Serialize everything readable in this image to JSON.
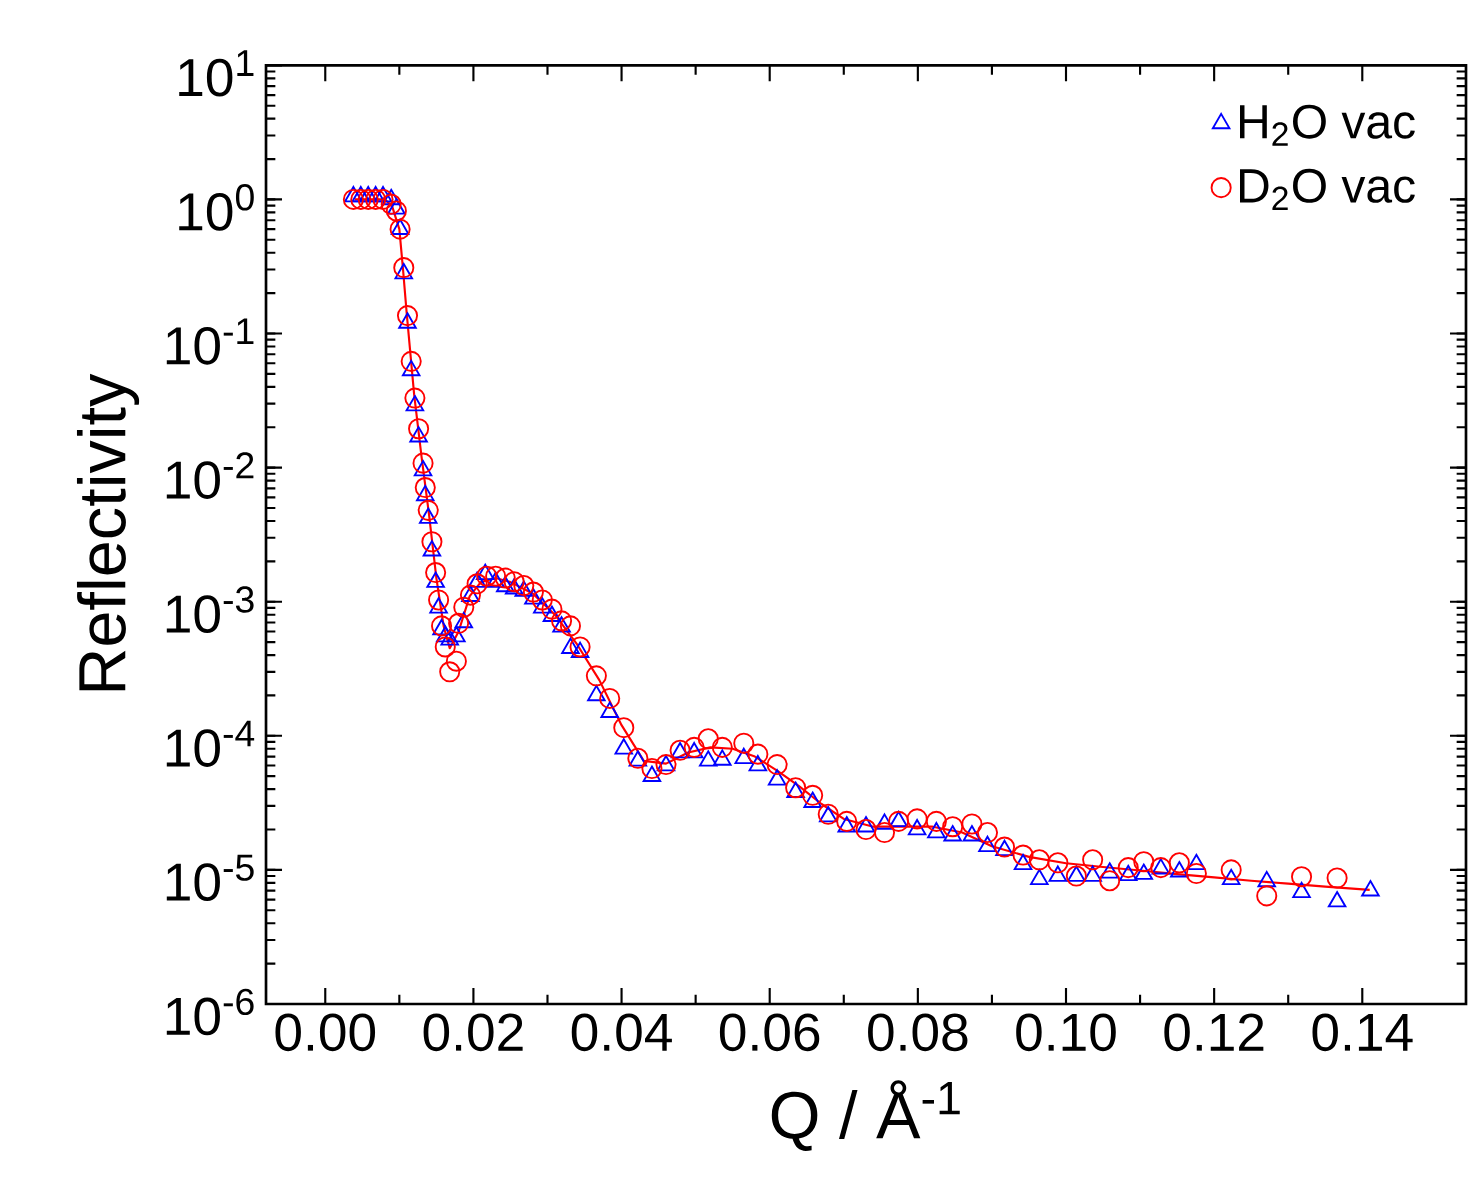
{
  "chart_data": {
    "type": "scatter",
    "xlabel": "Q / Å$^{-1}$",
    "ylabel": "Reflectivity",
    "log": "y",
    "legend": "top right",
    "grid": false,
    "xlim": [
      -0.008,
      0.154
    ],
    "ylim": [
      1e-06,
      10
    ],
    "xticks": [
      {
        "value": 0,
        "label": "0.00"
      },
      {
        "value": 0.02,
        "label": "0.02"
      },
      {
        "value": 0.04,
        "label": "0.04"
      },
      {
        "value": 0.06,
        "label": "0.06"
      },
      {
        "value": 0.08,
        "label": "0.08"
      },
      {
        "value": 0.1,
        "label": "0.10"
      },
      {
        "value": 0.12,
        "label": "0.12"
      },
      {
        "value": 0.14,
        "label": "0.14"
      }
    ],
    "yticks": [
      {
        "value": 1e-06,
        "label": "10$^{-6}$"
      },
      {
        "value": 1e-05,
        "label": "10$^{-5}$"
      },
      {
        "value": 0.0001,
        "label": "10$^{-4}$"
      },
      {
        "value": 0.001,
        "label": "10$^{-3}$"
      },
      {
        "value": 0.01,
        "label": "10$^{-2}$"
      },
      {
        "value": 0.1,
        "label": "10$^{-1}$"
      },
      {
        "value": 1,
        "label": "10$^{0}$"
      },
      {
        "value": 10,
        "label": "10$^{1}$"
      }
    ],
    "series": [
      {
        "type": "line",
        "color": "#ff0000",
        "marker": "none",
        "line_style": "solid",
        "x": [
          0.004,
          0.008,
          0.009,
          0.01,
          0.0105,
          0.011,
          0.012,
          0.013,
          0.014,
          0.015,
          0.016,
          0.0168,
          0.018,
          0.0195,
          0.021,
          0.023,
          0.025,
          0.028,
          0.031,
          0.034,
          0.037,
          0.04,
          0.043,
          0.046,
          0.049,
          0.052,
          0.055,
          0.058,
          0.061,
          0.064,
          0.067,
          0.07,
          0.074,
          0.078,
          0.082,
          0.086,
          0.09,
          0.095,
          0.1,
          0.105,
          0.11,
          0.115,
          0.12,
          0.125,
          0.13,
          0.135,
          0.141
        ],
        "values": [
          1.0,
          1.0,
          0.9,
          0.6,
          0.3,
          0.14,
          0.035,
          0.012,
          0.0045,
          0.0015,
          0.00065,
          0.00045,
          0.0006,
          0.0011,
          0.0014,
          0.0015,
          0.0014,
          0.00115,
          0.0008,
          0.00048,
          0.00026,
          0.00012,
          6.5e-05,
          6.2e-05,
          7.5e-05,
          8.2e-05,
          8e-05,
          7e-05,
          5.5e-05,
          4.2e-05,
          3.1e-05,
          2.4e-05,
          2.1e-05,
          2.1e-05,
          2.1e-05,
          1.9e-05,
          1.5e-05,
          1.25e-05,
          1.12e-05,
          1.05e-05,
          9.9e-06,
          9.3e-06,
          8.8e-06,
          8.3e-06,
          7.9e-06,
          7.5e-06,
          7.1e-06
        ]
      },
      {
        "name": "H$_{2}$O vac",
        "color": "#0000ff",
        "marker": "triangle",
        "x": [
          0.0038,
          0.0048,
          0.0058,
          0.0068,
          0.0078,
          0.0089,
          0.0096,
          0.0101,
          0.0106,
          0.0111,
          0.0116,
          0.0121,
          0.0126,
          0.0132,
          0.0135,
          0.0139,
          0.0144,
          0.0149,
          0.0153,
          0.0157,
          0.0162,
          0.0168,
          0.0177,
          0.0187,
          0.0196,
          0.0205,
          0.0216,
          0.023,
          0.0243,
          0.0255,
          0.0268,
          0.0281,
          0.0293,
          0.0306,
          0.0319,
          0.0331,
          0.0344,
          0.0366,
          0.0384,
          0.0403,
          0.0422,
          0.0441,
          0.046,
          0.0479,
          0.0498,
          0.0517,
          0.0536,
          0.0565,
          0.0584,
          0.061,
          0.0635,
          0.0658,
          0.0679,
          0.0704,
          0.073,
          0.0755,
          0.0774,
          0.0799,
          0.0825,
          0.0847,
          0.0873,
          0.0894,
          0.0917,
          0.0942,
          0.0964,
          0.0989,
          0.1014,
          0.1036,
          0.1059,
          0.1084,
          0.1105,
          0.1128,
          0.1153,
          0.1176,
          0.1223,
          0.1271,
          0.1318,
          0.1366,
          0.1411
        ],
        "values": [
          1.05,
          1.05,
          1.05,
          1.05,
          1.05,
          1.0,
          0.85,
          0.6,
          0.28,
          0.12,
          0.053,
          0.029,
          0.017,
          0.0095,
          0.0062,
          0.0042,
          0.0024,
          0.0014,
          0.0009,
          0.00062,
          0.00055,
          0.00052,
          0.00055,
          0.0007,
          0.0011,
          0.0014,
          0.0016,
          0.0014,
          0.0013,
          0.00125,
          0.0012,
          0.00105,
          0.0009,
          0.00078,
          0.00065,
          0.00045,
          0.00042,
          0.0002,
          0.00015,
          8e-05,
          6.5e-05,
          5e-05,
          6e-05,
          7.5e-05,
          7.5e-05,
          6.5e-05,
          6.6e-05,
          6.8e-05,
          6e-05,
          4.7e-05,
          3.8e-05,
          3.2e-05,
          2.5e-05,
          2.1e-05,
          2.1e-05,
          2.2e-05,
          2.3e-05,
          2e-05,
          1.9e-05,
          1.8e-05,
          1.8e-05,
          1.5e-05,
          1.4e-05,
          1.1e-05,
          8.5e-06,
          9e-06,
          9e-06,
          9e-06,
          9.5e-06,
          9.1e-06,
          9.3e-06,
          1.02e-05,
          9.7e-06,
          1.1e-05,
          8.5e-06,
          8.2e-06,
          6.8e-06,
          5.8e-06,
          7e-06
        ]
      },
      {
        "name": "D$_{2}$O vac",
        "color": "#ff0000",
        "marker": "circle",
        "x": [
          0.0038,
          0.0048,
          0.0058,
          0.0068,
          0.0078,
          0.0089,
          0.0096,
          0.0101,
          0.0106,
          0.0111,
          0.0116,
          0.0121,
          0.0126,
          0.0132,
          0.0135,
          0.0139,
          0.0144,
          0.0149,
          0.0153,
          0.0157,
          0.0162,
          0.0168,
          0.0177,
          0.018,
          0.0187,
          0.0196,
          0.0205,
          0.0218,
          0.023,
          0.0243,
          0.0255,
          0.0268,
          0.0281,
          0.0293,
          0.0306,
          0.0319,
          0.0331,
          0.0344,
          0.0366,
          0.0384,
          0.0403,
          0.0422,
          0.0441,
          0.046,
          0.0479,
          0.0498,
          0.0517,
          0.0536,
          0.0565,
          0.0584,
          0.061,
          0.0635,
          0.0658,
          0.0679,
          0.0704,
          0.073,
          0.0755,
          0.0774,
          0.0799,
          0.0825,
          0.0847,
          0.0873,
          0.0894,
          0.0917,
          0.0942,
          0.0964,
          0.0989,
          0.1014,
          0.1036,
          0.1059,
          0.1084,
          0.1105,
          0.1128,
          0.1153,
          0.1176,
          0.1223,
          0.1271,
          0.1318,
          0.1366
        ],
        "values": [
          1.0,
          1.0,
          1.0,
          1.0,
          1.0,
          0.92,
          0.82,
          0.6,
          0.31,
          0.136,
          0.062,
          0.033,
          0.0195,
          0.0108,
          0.0071,
          0.0048,
          0.0028,
          0.00165,
          0.00103,
          0.00066,
          0.00046,
          0.0003,
          0.00036,
          0.00069,
          0.00091,
          0.00112,
          0.00136,
          0.00155,
          0.00155,
          0.0015,
          0.00141,
          0.00132,
          0.00118,
          0.00103,
          0.00088,
          0.00072,
          0.00066,
          0.00046,
          0.00028,
          0.00019,
          0.000115,
          6.8e-05,
          5.7e-05,
          6.1e-05,
          7.8e-05,
          8.2e-05,
          9.5e-05,
          8.2e-05,
          8.8e-05,
          7.3e-05,
          6.1e-05,
          4.1e-05,
          3.6e-05,
          2.6e-05,
          2.3e-05,
          2e-05,
          1.9e-05,
          2.3e-05,
          2.4e-05,
          2.3e-05,
          2.1e-05,
          2.2e-05,
          1.9e-05,
          1.48e-05,
          1.29e-05,
          1.19e-05,
          1.13e-05,
          9e-06,
          1.19e-05,
          8.3e-06,
          1.04e-05,
          1.15e-05,
          1.04e-05,
          1.13e-05,
          9.4e-06,
          1e-05,
          6.4e-06,
          8.9e-06,
          8.7e-06
        ]
      }
    ]
  }
}
